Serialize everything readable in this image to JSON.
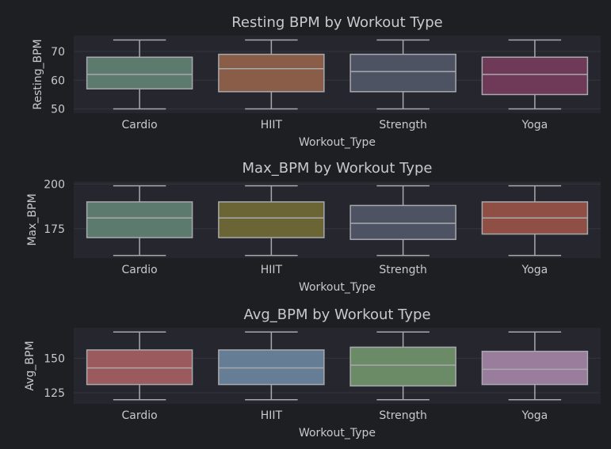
{
  "chart_data": [
    {
      "type": "box",
      "title": "Resting BPM by Workout Type",
      "xlabel": "Workout_Type",
      "ylabel": "Resting_BPM",
      "categories": [
        "Cardio",
        "HIIT",
        "Strength",
        "Yoga"
      ],
      "ylim": [
        48.5,
        75.5
      ],
      "yticks": [
        50,
        60,
        70
      ],
      "boxes": [
        {
          "min": 50,
          "q1": 57,
          "median": 62,
          "q3": 68,
          "max": 74,
          "color": "#5c7a6e"
        },
        {
          "min": 50,
          "q1": 56,
          "median": 64,
          "q3": 69,
          "max": 74,
          "color": "#8a5d49"
        },
        {
          "min": 50,
          "q1": 56,
          "median": 63,
          "q3": 69,
          "max": 74,
          "color": "#4e5363"
        },
        {
          "min": 50,
          "q1": 55,
          "median": 62,
          "q3": 68,
          "max": 74,
          "color": "#6e3a57"
        }
      ],
      "grid": true
    },
    {
      "type": "box",
      "title": "Max_BPM by Workout Type",
      "xlabel": "Workout_Type",
      "ylabel": "Max_BPM",
      "categories": [
        "Cardio",
        "HIIT",
        "Strength",
        "Yoga"
      ],
      "ylim": [
        158.5,
        201.5
      ],
      "yticks": [
        175,
        200
      ],
      "boxes": [
        {
          "min": 160,
          "q1": 170,
          "median": 181,
          "q3": 190,
          "max": 199,
          "color": "#5c7a6e"
        },
        {
          "min": 160,
          "q1": 170,
          "median": 181,
          "q3": 190,
          "max": 199,
          "color": "#6b6434"
        },
        {
          "min": 160,
          "q1": 169,
          "median": 178,
          "q3": 188,
          "max": 199,
          "color": "#4e5363"
        },
        {
          "min": 160,
          "q1": 172,
          "median": 181,
          "q3": 190,
          "max": 199,
          "color": "#8f4f44"
        }
      ],
      "grid": true
    },
    {
      "type": "box",
      "title": "Avg_BPM by Workout Type",
      "xlabel": "Workout_Type",
      "ylabel": "Avg_BPM",
      "categories": [
        "Cardio",
        "HIIT",
        "Strength",
        "Yoga"
      ],
      "ylim": [
        117,
        172
      ],
      "yticks": [
        125,
        150
      ],
      "boxes": [
        {
          "min": 120,
          "q1": 131,
          "median": 143,
          "q3": 156,
          "max": 169,
          "color": "#9a5a5e"
        },
        {
          "min": 120,
          "q1": 131,
          "median": 143,
          "q3": 156,
          "max": 169,
          "color": "#667d96"
        },
        {
          "min": 120,
          "q1": 130,
          "median": 145,
          "q3": 158,
          "max": 169,
          "color": "#6b8a66"
        },
        {
          "min": 120,
          "q1": 131,
          "median": 142,
          "q3": 155,
          "max": 169,
          "color": "#9a7d9c"
        }
      ],
      "grid": true
    }
  ],
  "colors": {
    "background": "#1e1f22",
    "axes_face": "#26272e",
    "grid": "#33343c",
    "text": "#c8c9cc",
    "line": "#a8a9ad"
  }
}
